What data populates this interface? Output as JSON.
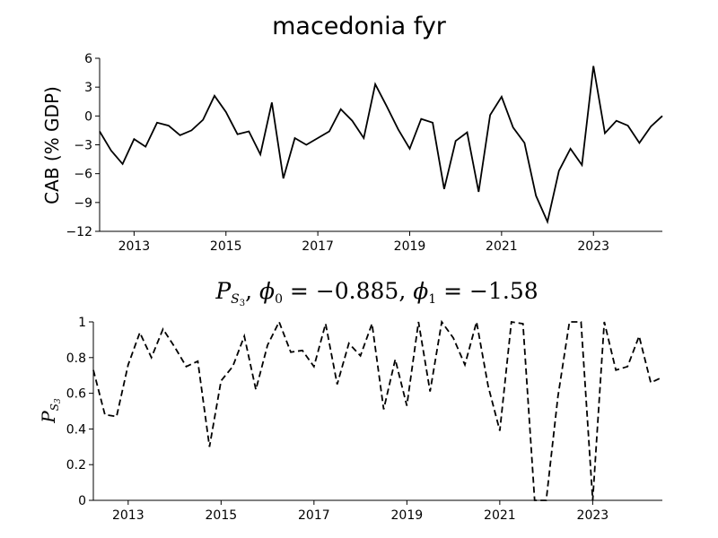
{
  "chart_data": [
    {
      "type": "line",
      "title": "macedonia fyr",
      "ylabel": "CAB (% GDP)",
      "ylim": [
        -12,
        6
      ],
      "yticks": [
        -12,
        -9,
        -6,
        -3,
        0,
        3,
        6
      ],
      "xlim": [
        2012.25,
        2024.5
      ],
      "xticks": [
        2013,
        2015,
        2017,
        2019,
        2021,
        2023
      ],
      "line_style": "solid",
      "color": "#000000",
      "grid": false,
      "series": [
        {
          "x": [
            2012.25,
            2012.5,
            2012.75,
            2013,
            2013.25,
            2013.5,
            2013.75,
            2014,
            2014.25,
            2014.5,
            2014.75,
            2015,
            2015.25,
            2015.5,
            2015.75,
            2016,
            2016.25,
            2016.5,
            2016.75,
            2017,
            2017.25,
            2017.5,
            2017.75,
            2018,
            2018.25,
            2018.5,
            2018.75,
            2019,
            2019.25,
            2019.5,
            2019.75,
            2020,
            2020.25,
            2020.5,
            2020.75,
            2021,
            2021.25,
            2021.5,
            2021.75,
            2022,
            2022.25,
            2022.5,
            2022.75,
            2023,
            2023.25,
            2023.5,
            2023.75,
            2024,
            2024.25,
            2024.5
          ],
          "values": [
            -1.6,
            -3.6,
            -5.0,
            -2.4,
            -3.2,
            -0.7,
            -1.0,
            -2.0,
            -1.5,
            -0.4,
            2.1,
            0.4,
            -1.9,
            -1.6,
            -4.0,
            1.4,
            -6.5,
            -2.3,
            -3.0,
            -2.3,
            -1.6,
            0.7,
            -0.5,
            -2.3,
            3.3,
            1.0,
            -1.4,
            -3.4,
            -0.3,
            -0.7,
            -7.6,
            -2.6,
            -1.7,
            -7.9,
            0.1,
            2.0,
            -1.2,
            -2.8,
            -8.3,
            -11.0,
            -5.7,
            -3.4,
            -5.1,
            5.2,
            -1.8,
            -0.5,
            -1.0,
            -2.8,
            -1.1,
            0.0
          ]
        }
      ]
    },
    {
      "type": "line",
      "title": "P_{S_3}, φ_0 = −0.885, φ_1 = −1.58",
      "ylabel": "P_{S_3}",
      "ylim": [
        0,
        1
      ],
      "yticks": [
        0,
        0.2,
        0.4,
        0.6,
        0.8,
        1
      ],
      "xlim": [
        2012.25,
        2024.5
      ],
      "xticks": [
        2013,
        2015,
        2017,
        2019,
        2021,
        2023
      ],
      "line_style": "dashed",
      "color": "#000000",
      "grid": false,
      "series": [
        {
          "x": [
            2012.25,
            2012.5,
            2012.75,
            2013,
            2013.25,
            2013.5,
            2013.75,
            2014,
            2014.25,
            2014.5,
            2014.75,
            2015,
            2015.25,
            2015.5,
            2015.75,
            2016,
            2016.25,
            2016.5,
            2016.75,
            2017,
            2017.25,
            2017.5,
            2017.75,
            2018,
            2018.25,
            2018.5,
            2018.75,
            2019,
            2019.25,
            2019.5,
            2019.75,
            2020,
            2020.25,
            2020.5,
            2020.75,
            2021,
            2021.25,
            2021.5,
            2021.75,
            2022,
            2022.25,
            2022.5,
            2022.75,
            2023,
            2023.25,
            2023.5,
            2023.75,
            2024,
            2024.25,
            2024.5
          ],
          "values": [
            0.73,
            0.48,
            0.47,
            0.76,
            0.94,
            0.8,
            0.96,
            0.86,
            0.75,
            0.78,
            0.3,
            0.67,
            0.75,
            0.92,
            0.62,
            0.87,
            1.0,
            0.83,
            0.84,
            0.75,
            0.99,
            0.65,
            0.88,
            0.81,
            0.99,
            0.51,
            0.79,
            0.53,
            1.0,
            0.61,
            1.0,
            0.91,
            0.76,
            1.0,
            0.64,
            0.39,
            1.0,
            0.99,
            0.0,
            0.0,
            0.58,
            1.0,
            1.0,
            0.0,
            1.0,
            0.73,
            0.75,
            0.92,
            0.66,
            0.69
          ]
        }
      ]
    }
  ],
  "text": {
    "title1": "macedonia fyr",
    "ylabel1": "CAB (% GDP)",
    "title2_P": "P",
    "title2_S": "S",
    "title2_sub3": "3",
    "title2_rest": ", ",
    "title2_phi0": "ϕ",
    "title2_phi0_sub": "0",
    "title2_eq0": " = −0.885, ",
    "title2_phi1": "ϕ",
    "title2_phi1_sub": "1",
    "title2_eq1": " = −1.58",
    "ylabel2_P": "P",
    "ylabel2_S": "S",
    "ylabel2_sub3": "3"
  }
}
